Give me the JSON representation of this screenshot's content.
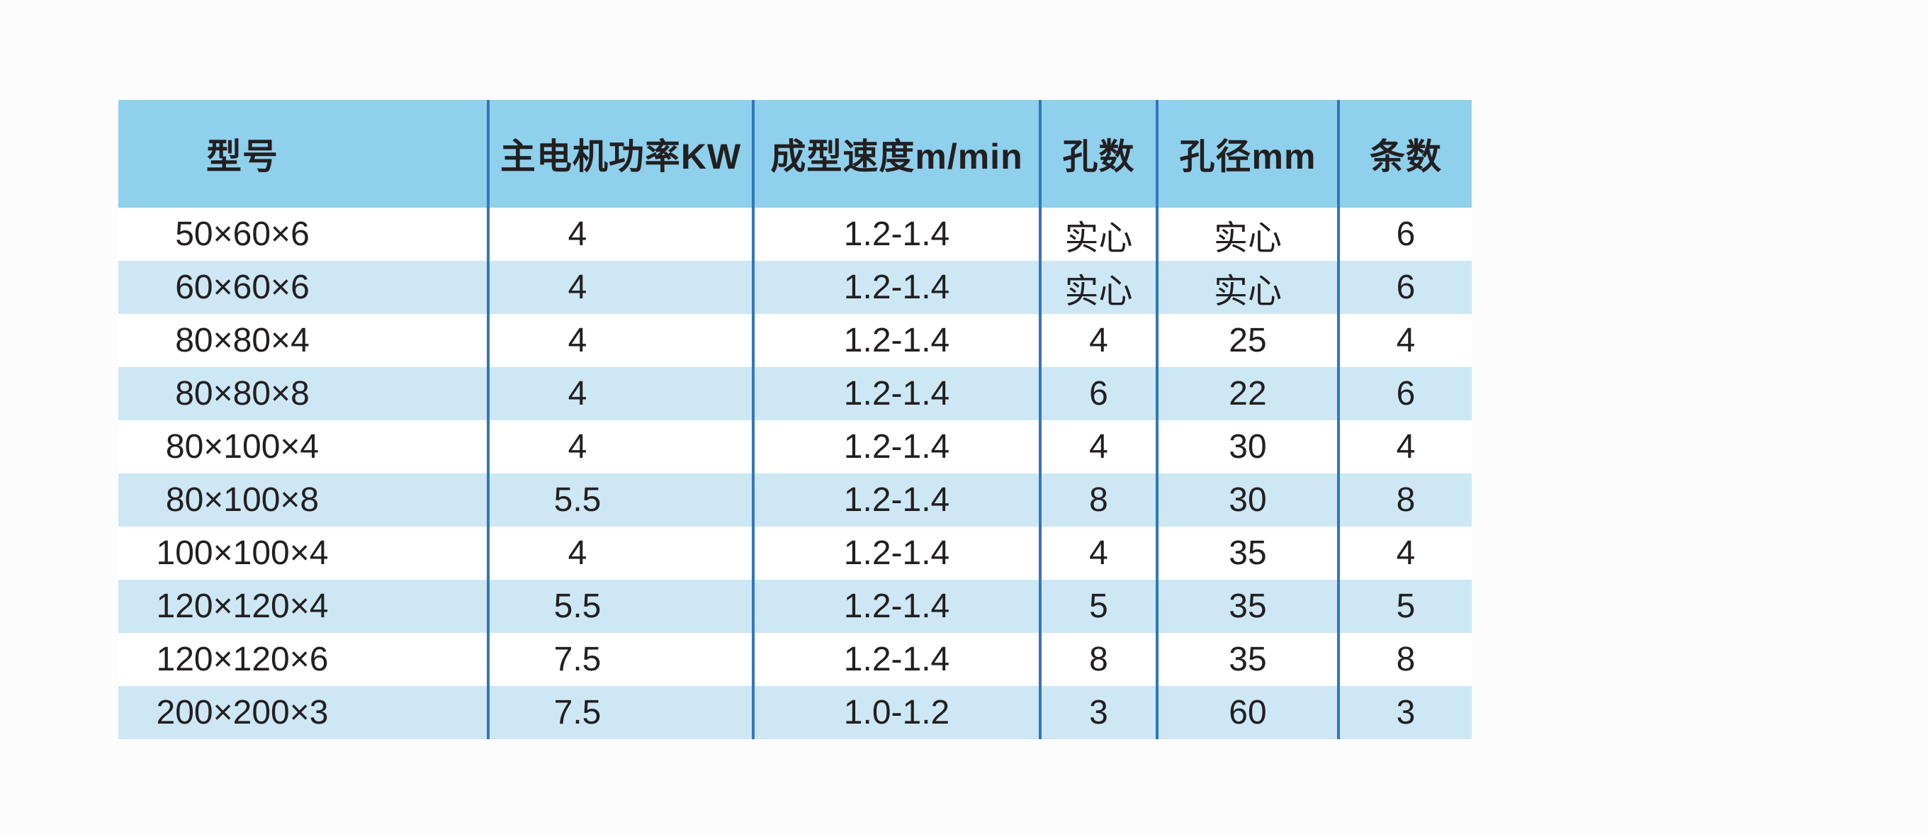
{
  "colors": {
    "page_bg": "#FCFCFC",
    "header_bg": "#8FD0EC",
    "row_bg": "#FFFFFF",
    "row_alt_bg": "#CDE7F5",
    "divider": "#3376B9",
    "text": "#231F20"
  },
  "chart_data": {
    "type": "table",
    "title": "",
    "columns": [
      "型号",
      "主电机功率KW",
      "成型速度m/min",
      "孔数",
      "孔径mm",
      "条数"
    ],
    "rows": [
      [
        "50×60×6",
        "4",
        "1.2-1.4",
        "实心",
        "实心",
        "6"
      ],
      [
        "60×60×6",
        "4",
        "1.2-1.4",
        "实心",
        "实心",
        "6"
      ],
      [
        "80×80×4",
        "4",
        "1.2-1.4",
        "4",
        "25",
        "4"
      ],
      [
        "80×80×8",
        "4",
        "1.2-1.4",
        "6",
        "22",
        "6"
      ],
      [
        "80×100×4",
        "4",
        "1.2-1.4",
        "4",
        "30",
        "4"
      ],
      [
        "80×100×8",
        "5.5",
        "1.2-1.4",
        "8",
        "30",
        "8"
      ],
      [
        "100×100×4",
        "4",
        "1.2-1.4",
        "4",
        "35",
        "4"
      ],
      [
        "120×120×4",
        "5.5",
        "1.2-1.4",
        "5",
        "35",
        "5"
      ],
      [
        "120×120×6",
        "7.5",
        "1.2-1.4",
        "8",
        "35",
        "8"
      ],
      [
        "200×200×3",
        "7.5",
        "1.0-1.2",
        "3",
        "60",
        "3"
      ]
    ],
    "layout": {
      "alternating_rows": true,
      "column_dividers": true,
      "outer_border": false
    }
  }
}
